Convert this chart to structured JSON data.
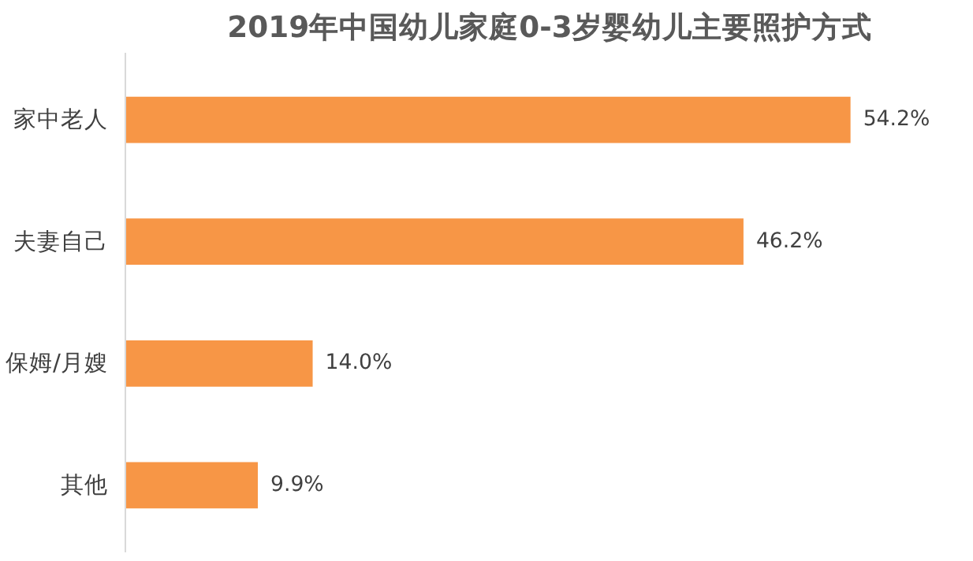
{
  "chart_data": {
    "type": "bar",
    "orientation": "horizontal",
    "title": "2019年中国幼儿家庭0-3岁婴幼儿主要照护方式",
    "categories": [
      "家中老人",
      "夫妻自己",
      "保姆/月嫂",
      "其他"
    ],
    "values": [
      54.2,
      46.2,
      14.0,
      9.9
    ],
    "value_labels": [
      "54.2%",
      "46.2%",
      "14.0%",
      "9.9%"
    ],
    "color": "#f79646",
    "grid": false
  }
}
